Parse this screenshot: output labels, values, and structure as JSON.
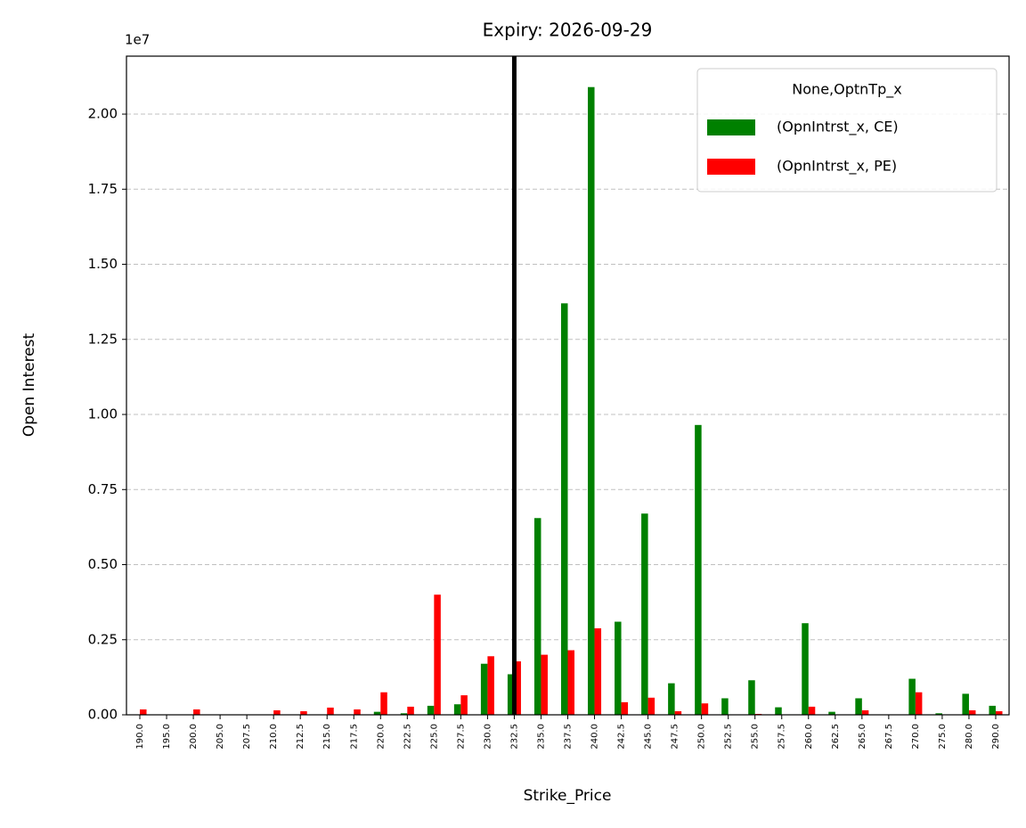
{
  "chart_data": {
    "type": "bar",
    "title": "Expiry: 2026-09-29",
    "x_label": "Strike_Price",
    "y_label": "Open Interest",
    "y_offset_label": "1e7",
    "categories": [
      "190.0",
      "195.0",
      "200.0",
      "205.0",
      "207.5",
      "210.0",
      "212.5",
      "215.0",
      "217.5",
      "220.0",
      "222.5",
      "225.0",
      "227.5",
      "230.0",
      "232.5",
      "235.0",
      "237.5",
      "240.0",
      "242.5",
      "245.0",
      "247.5",
      "250.0",
      "252.5",
      "255.0",
      "257.5",
      "260.0",
      "262.5",
      "265.0",
      "267.5",
      "270.0",
      "275.0",
      "280.0",
      "290.0"
    ],
    "series": [
      {
        "name": "(OpnIntrst_x, CE)",
        "color": "#008000",
        "values": [
          0,
          0,
          0,
          0,
          0,
          0,
          0,
          0,
          0,
          0.01,
          0.005,
          0.03,
          0.035,
          0.17,
          0.135,
          0.655,
          1.37,
          2.09,
          0.31,
          0.67,
          0.105,
          0.965,
          0.055,
          0.115,
          0.025,
          0.305,
          0.01,
          0.055,
          0,
          0.12,
          0.005,
          0.07,
          0.03
        ]
      },
      {
        "name": "(OpnIntrst_x, PE)",
        "color": "#ff0000",
        "values": [
          0.018,
          0,
          0.018,
          0,
          0,
          0.015,
          0.012,
          0.024,
          0.018,
          0.075,
          0.027,
          0.4,
          0.065,
          0.195,
          0.178,
          0.2,
          0.215,
          0.288,
          0.042,
          0.057,
          0.012,
          0.038,
          0,
          0.003,
          0,
          0.027,
          0,
          0.015,
          0,
          0.075,
          0,
          0.015,
          0.012
        ]
      }
    ],
    "legend_title": "None,OptnTp_x",
    "legend_position": "upper right",
    "ylim": [
      0,
      2.193
    ],
    "yticks": [
      {
        "value": 0,
        "label": "0.00"
      },
      0.25,
      {
        "value": 0.5,
        "label": "0.50"
      },
      0.75,
      {
        "value": 1,
        "label": "1.00"
      },
      1.25,
      {
        "value": 1.5,
        "label": "1.50"
      },
      1.75,
      {
        "value": 2,
        "label": "2.00"
      }
    ],
    "grid": true,
    "vline": {
      "category": "232.5",
      "color": "#000000"
    }
  }
}
